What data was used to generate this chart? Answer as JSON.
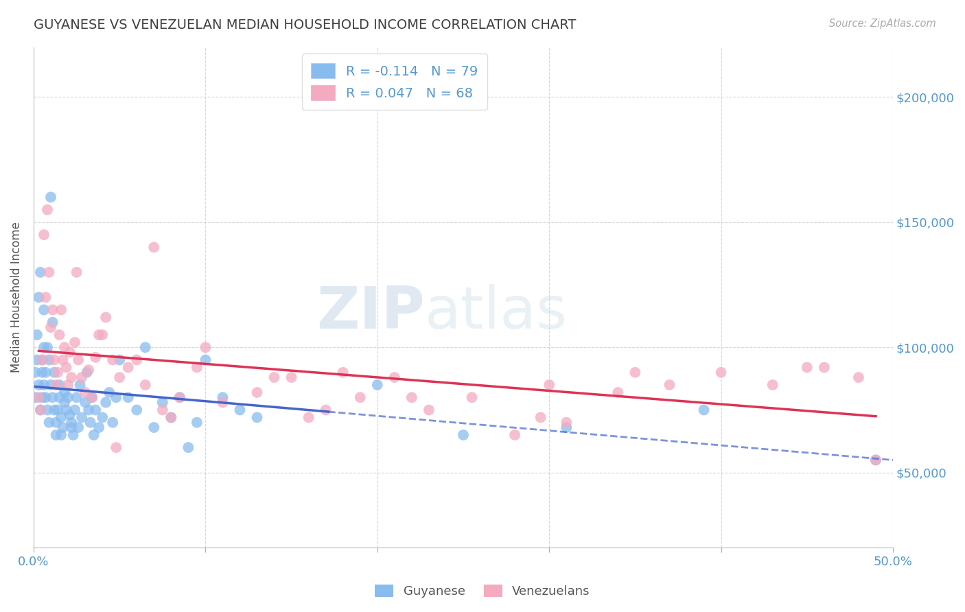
{
  "title": "GUYANESE VS VENEZUELAN MEDIAN HOUSEHOLD INCOME CORRELATION CHART",
  "source_text": "Source: ZipAtlas.com",
  "ylabel": "Median Household Income",
  "xlim": [
    0.0,
    0.5
  ],
  "ylim": [
    20000,
    220000
  ],
  "yticks": [
    50000,
    100000,
    150000,
    200000
  ],
  "ytick_labels": [
    "$50,000",
    "$100,000",
    "$150,000",
    "$200,000"
  ],
  "xticks": [
    0.0,
    0.1,
    0.2,
    0.3,
    0.4,
    0.5
  ],
  "xtick_labels": [
    "0.0%",
    "",
    "",
    "",
    "",
    "50.0%"
  ],
  "background_color": "#ffffff",
  "grid_color": "#cccccc",
  "title_color": "#404040",
  "axis_label_color": "#5599cc",
  "guyanese_color": "#88bbee",
  "venezuelan_color": "#f4aabf",
  "guyanese_line_color": "#4466cc",
  "venezuelan_line_color": "#dd3355",
  "guyanese_R": -0.114,
  "guyanese_N": 79,
  "venezuelan_R": 0.047,
  "venezuelan_N": 68,
  "legend_label_guyanese": "Guyanese",
  "legend_label_venezuelan": "Venezuelans",
  "watermark_zip": "ZIP",
  "watermark_atlas": "atlas",
  "guyanese_x": [
    0.001,
    0.001,
    0.002,
    0.002,
    0.003,
    0.003,
    0.004,
    0.004,
    0.005,
    0.005,
    0.005,
    0.006,
    0.006,
    0.006,
    0.007,
    0.007,
    0.008,
    0.008,
    0.009,
    0.009,
    0.01,
    0.01,
    0.011,
    0.011,
    0.012,
    0.012,
    0.013,
    0.013,
    0.014,
    0.015,
    0.015,
    0.016,
    0.016,
    0.017,
    0.018,
    0.018,
    0.019,
    0.02,
    0.021,
    0.022,
    0.022,
    0.023,
    0.024,
    0.025,
    0.026,
    0.027,
    0.028,
    0.03,
    0.031,
    0.032,
    0.033,
    0.034,
    0.035,
    0.036,
    0.038,
    0.04,
    0.042,
    0.044,
    0.046,
    0.048,
    0.05,
    0.055,
    0.06,
    0.065,
    0.07,
    0.075,
    0.08,
    0.085,
    0.09,
    0.095,
    0.1,
    0.11,
    0.12,
    0.13,
    0.2,
    0.25,
    0.31,
    0.39,
    0.49
  ],
  "guyanese_y": [
    90000,
    80000,
    95000,
    105000,
    120000,
    85000,
    75000,
    130000,
    90000,
    80000,
    95000,
    100000,
    115000,
    85000,
    90000,
    80000,
    100000,
    75000,
    70000,
    95000,
    160000,
    85000,
    80000,
    110000,
    75000,
    90000,
    65000,
    70000,
    75000,
    80000,
    85000,
    65000,
    72000,
    68000,
    78000,
    82000,
    75000,
    80000,
    73000,
    68000,
    70000,
    65000,
    75000,
    80000,
    68000,
    85000,
    72000,
    78000,
    90000,
    75000,
    70000,
    80000,
    65000,
    75000,
    68000,
    72000,
    78000,
    82000,
    70000,
    80000,
    95000,
    80000,
    75000,
    100000,
    68000,
    78000,
    72000,
    80000,
    60000,
    70000,
    95000,
    80000,
    75000,
    72000,
    85000,
    65000,
    68000,
    75000,
    55000
  ],
  "venezuelan_x": [
    0.003,
    0.004,
    0.005,
    0.006,
    0.007,
    0.008,
    0.009,
    0.01,
    0.011,
    0.012,
    0.013,
    0.014,
    0.015,
    0.016,
    0.017,
    0.018,
    0.019,
    0.02,
    0.021,
    0.022,
    0.024,
    0.026,
    0.028,
    0.03,
    0.032,
    0.034,
    0.036,
    0.038,
    0.042,
    0.046,
    0.05,
    0.055,
    0.06,
    0.065,
    0.075,
    0.085,
    0.095,
    0.11,
    0.13,
    0.15,
    0.17,
    0.19,
    0.21,
    0.23,
    0.255,
    0.28,
    0.31,
    0.34,
    0.37,
    0.4,
    0.43,
    0.46,
    0.49,
    0.025,
    0.04,
    0.07,
    0.1,
    0.14,
    0.18,
    0.22,
    0.3,
    0.35,
    0.45,
    0.48,
    0.048,
    0.08,
    0.16,
    0.295
  ],
  "venezuelan_y": [
    80000,
    75000,
    95000,
    145000,
    120000,
    155000,
    130000,
    108000,
    115000,
    95000,
    85000,
    90000,
    105000,
    115000,
    95000,
    100000,
    92000,
    85000,
    98000,
    88000,
    102000,
    95000,
    88000,
    82000,
    91000,
    80000,
    96000,
    105000,
    112000,
    95000,
    88000,
    92000,
    95000,
    85000,
    75000,
    80000,
    92000,
    78000,
    82000,
    88000,
    75000,
    80000,
    88000,
    75000,
    80000,
    65000,
    70000,
    82000,
    85000,
    90000,
    85000,
    92000,
    55000,
    130000,
    105000,
    140000,
    100000,
    88000,
    90000,
    80000,
    85000,
    90000,
    92000,
    88000,
    60000,
    72000,
    72000,
    72000
  ]
}
